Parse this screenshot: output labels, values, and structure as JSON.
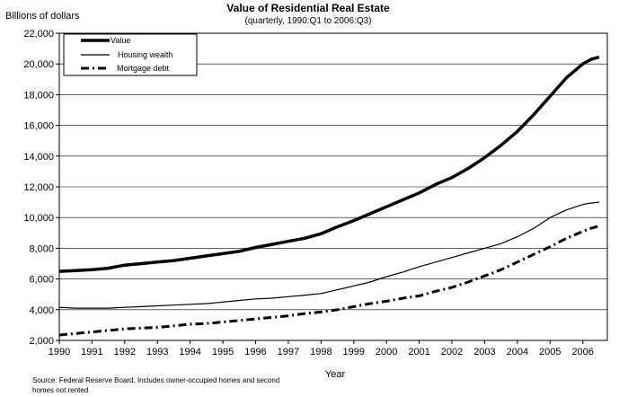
{
  "chart_data": {
    "type": "line",
    "title": "Value of Residential Real Estate",
    "subtitle": "(quarterly, 1990:Q1 to 2006:Q3)",
    "ylabel": "Billions of dollars",
    "xlabel": "Year",
    "ylim": [
      2000,
      22000
    ],
    "yticks": [
      2000,
      4000,
      6000,
      8000,
      10000,
      12000,
      14000,
      16000,
      18000,
      20000,
      22000
    ],
    "ytick_labels": [
      "2,000",
      "4,000",
      "6,000",
      "8,000",
      "10,000",
      "12,000",
      "14,000",
      "16,000",
      "18,000",
      "20,000",
      "22,000"
    ],
    "xlim": [
      1990,
      2006.75
    ],
    "xtick_labels": [
      "1990",
      "1991",
      "1992",
      "1993",
      "1994",
      "1995",
      "1996",
      "1997",
      "1998",
      "1999",
      "2000",
      "2001",
      "2002",
      "2003",
      "2004",
      "2005",
      "2006"
    ],
    "grid": "horizontal",
    "legend_position": "top-left",
    "series": [
      {
        "name": "Value",
        "style": "thick-solid",
        "x": [
          1990,
          1990.5,
          1991,
          1991.5,
          1992,
          1992.5,
          1993,
          1993.5,
          1994,
          1994.5,
          1995,
          1995.5,
          1996,
          1996.5,
          1997,
          1997.5,
          1998,
          1998.5,
          1999,
          1999.5,
          2000,
          2000.5,
          2001,
          2001.5,
          2002,
          2002.5,
          2003,
          2003.5,
          2004,
          2004.5,
          2005,
          2005.5,
          2006,
          2006.25,
          2006.5
        ],
        "values": [
          6500,
          6550,
          6600,
          6700,
          6900,
          7000,
          7100,
          7200,
          7350,
          7500,
          7650,
          7800,
          8050,
          8250,
          8450,
          8650,
          8950,
          9400,
          9800,
          10250,
          10700,
          11150,
          11600,
          12150,
          12600,
          13200,
          13900,
          14700,
          15600,
          16700,
          17900,
          19100,
          20000,
          20300,
          20450
        ]
      },
      {
        "name": "Housing wealth",
        "style": "thin-solid",
        "x": [
          1990,
          1990.5,
          1991,
          1991.5,
          1992,
          1992.5,
          1993,
          1993.5,
          1994,
          1994.5,
          1995,
          1995.5,
          1996,
          1996.5,
          1997,
          1997.5,
          1998,
          1998.5,
          1999,
          1999.5,
          2000,
          2000.5,
          2001,
          2001.5,
          2002,
          2002.5,
          2003,
          2003.5,
          2004,
          2004.5,
          2005,
          2005.5,
          2006,
          2006.25,
          2006.5
        ],
        "values": [
          4150,
          4100,
          4100,
          4100,
          4150,
          4200,
          4250,
          4300,
          4350,
          4400,
          4500,
          4600,
          4700,
          4750,
          4850,
          4950,
          5050,
          5300,
          5550,
          5800,
          6150,
          6450,
          6800,
          7100,
          7400,
          7700,
          8000,
          8300,
          8750,
          9300,
          10000,
          10500,
          10850,
          10950,
          11000
        ]
      },
      {
        "name": "Mortgage debt",
        "style": "dash-dot",
        "x": [
          1990,
          1990.5,
          1991,
          1991.5,
          1992,
          1992.5,
          1993,
          1993.5,
          1994,
          1994.5,
          1995,
          1995.5,
          1996,
          1996.5,
          1997,
          1997.5,
          1998,
          1998.5,
          1999,
          1999.5,
          2000,
          2000.5,
          2001,
          2001.5,
          2002,
          2002.5,
          2003,
          2003.5,
          2004,
          2004.5,
          2005,
          2005.5,
          2006,
          2006.25,
          2006.5
        ],
        "values": [
          2350,
          2450,
          2550,
          2650,
          2750,
          2800,
          2850,
          2950,
          3050,
          3100,
          3200,
          3300,
          3400,
          3500,
          3600,
          3750,
          3850,
          4000,
          4200,
          4400,
          4550,
          4750,
          4900,
          5200,
          5450,
          5800,
          6200,
          6600,
          7100,
          7600,
          8100,
          8650,
          9100,
          9300,
          9450
        ]
      }
    ]
  },
  "footer": {
    "source_line1": "Source: Federal Reserve Board.  Includes owner-occupied homes and second",
    "source_line2": "homes not rented"
  }
}
